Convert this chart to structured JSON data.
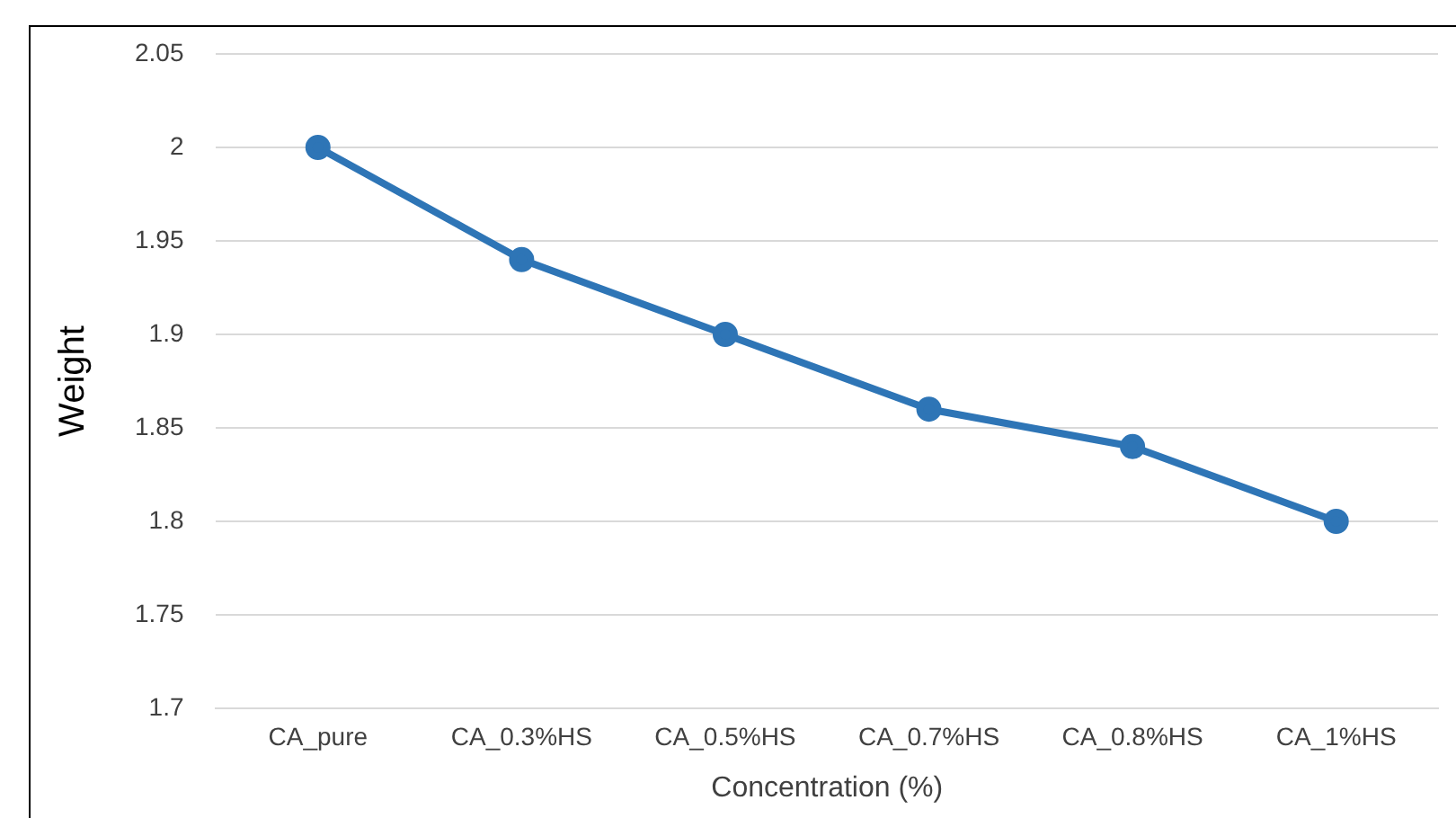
{
  "chart_data": {
    "type": "line",
    "xlabel": "Concentration (%)",
    "ylabel": "Weight",
    "categories": [
      "CA_pure",
      "CA_0.3%HS",
      "CA_0.5%HS",
      "CA_0.7%HS",
      "CA_0.8%HS",
      "CA_1%HS"
    ],
    "series": [
      {
        "color": "#2e75b6",
        "values": [
          2,
          1.94,
          1.9,
          1.86,
          1.84,
          1.8
        ]
      }
    ],
    "ylim": [
      1.7,
      2.05
    ],
    "yticks": [
      1.7,
      1.75,
      1.8,
      1.85,
      1.9,
      1.95,
      2,
      2.05
    ],
    "grid": "y",
    "marker": "circle",
    "line_style": "solid",
    "legend": false
  }
}
